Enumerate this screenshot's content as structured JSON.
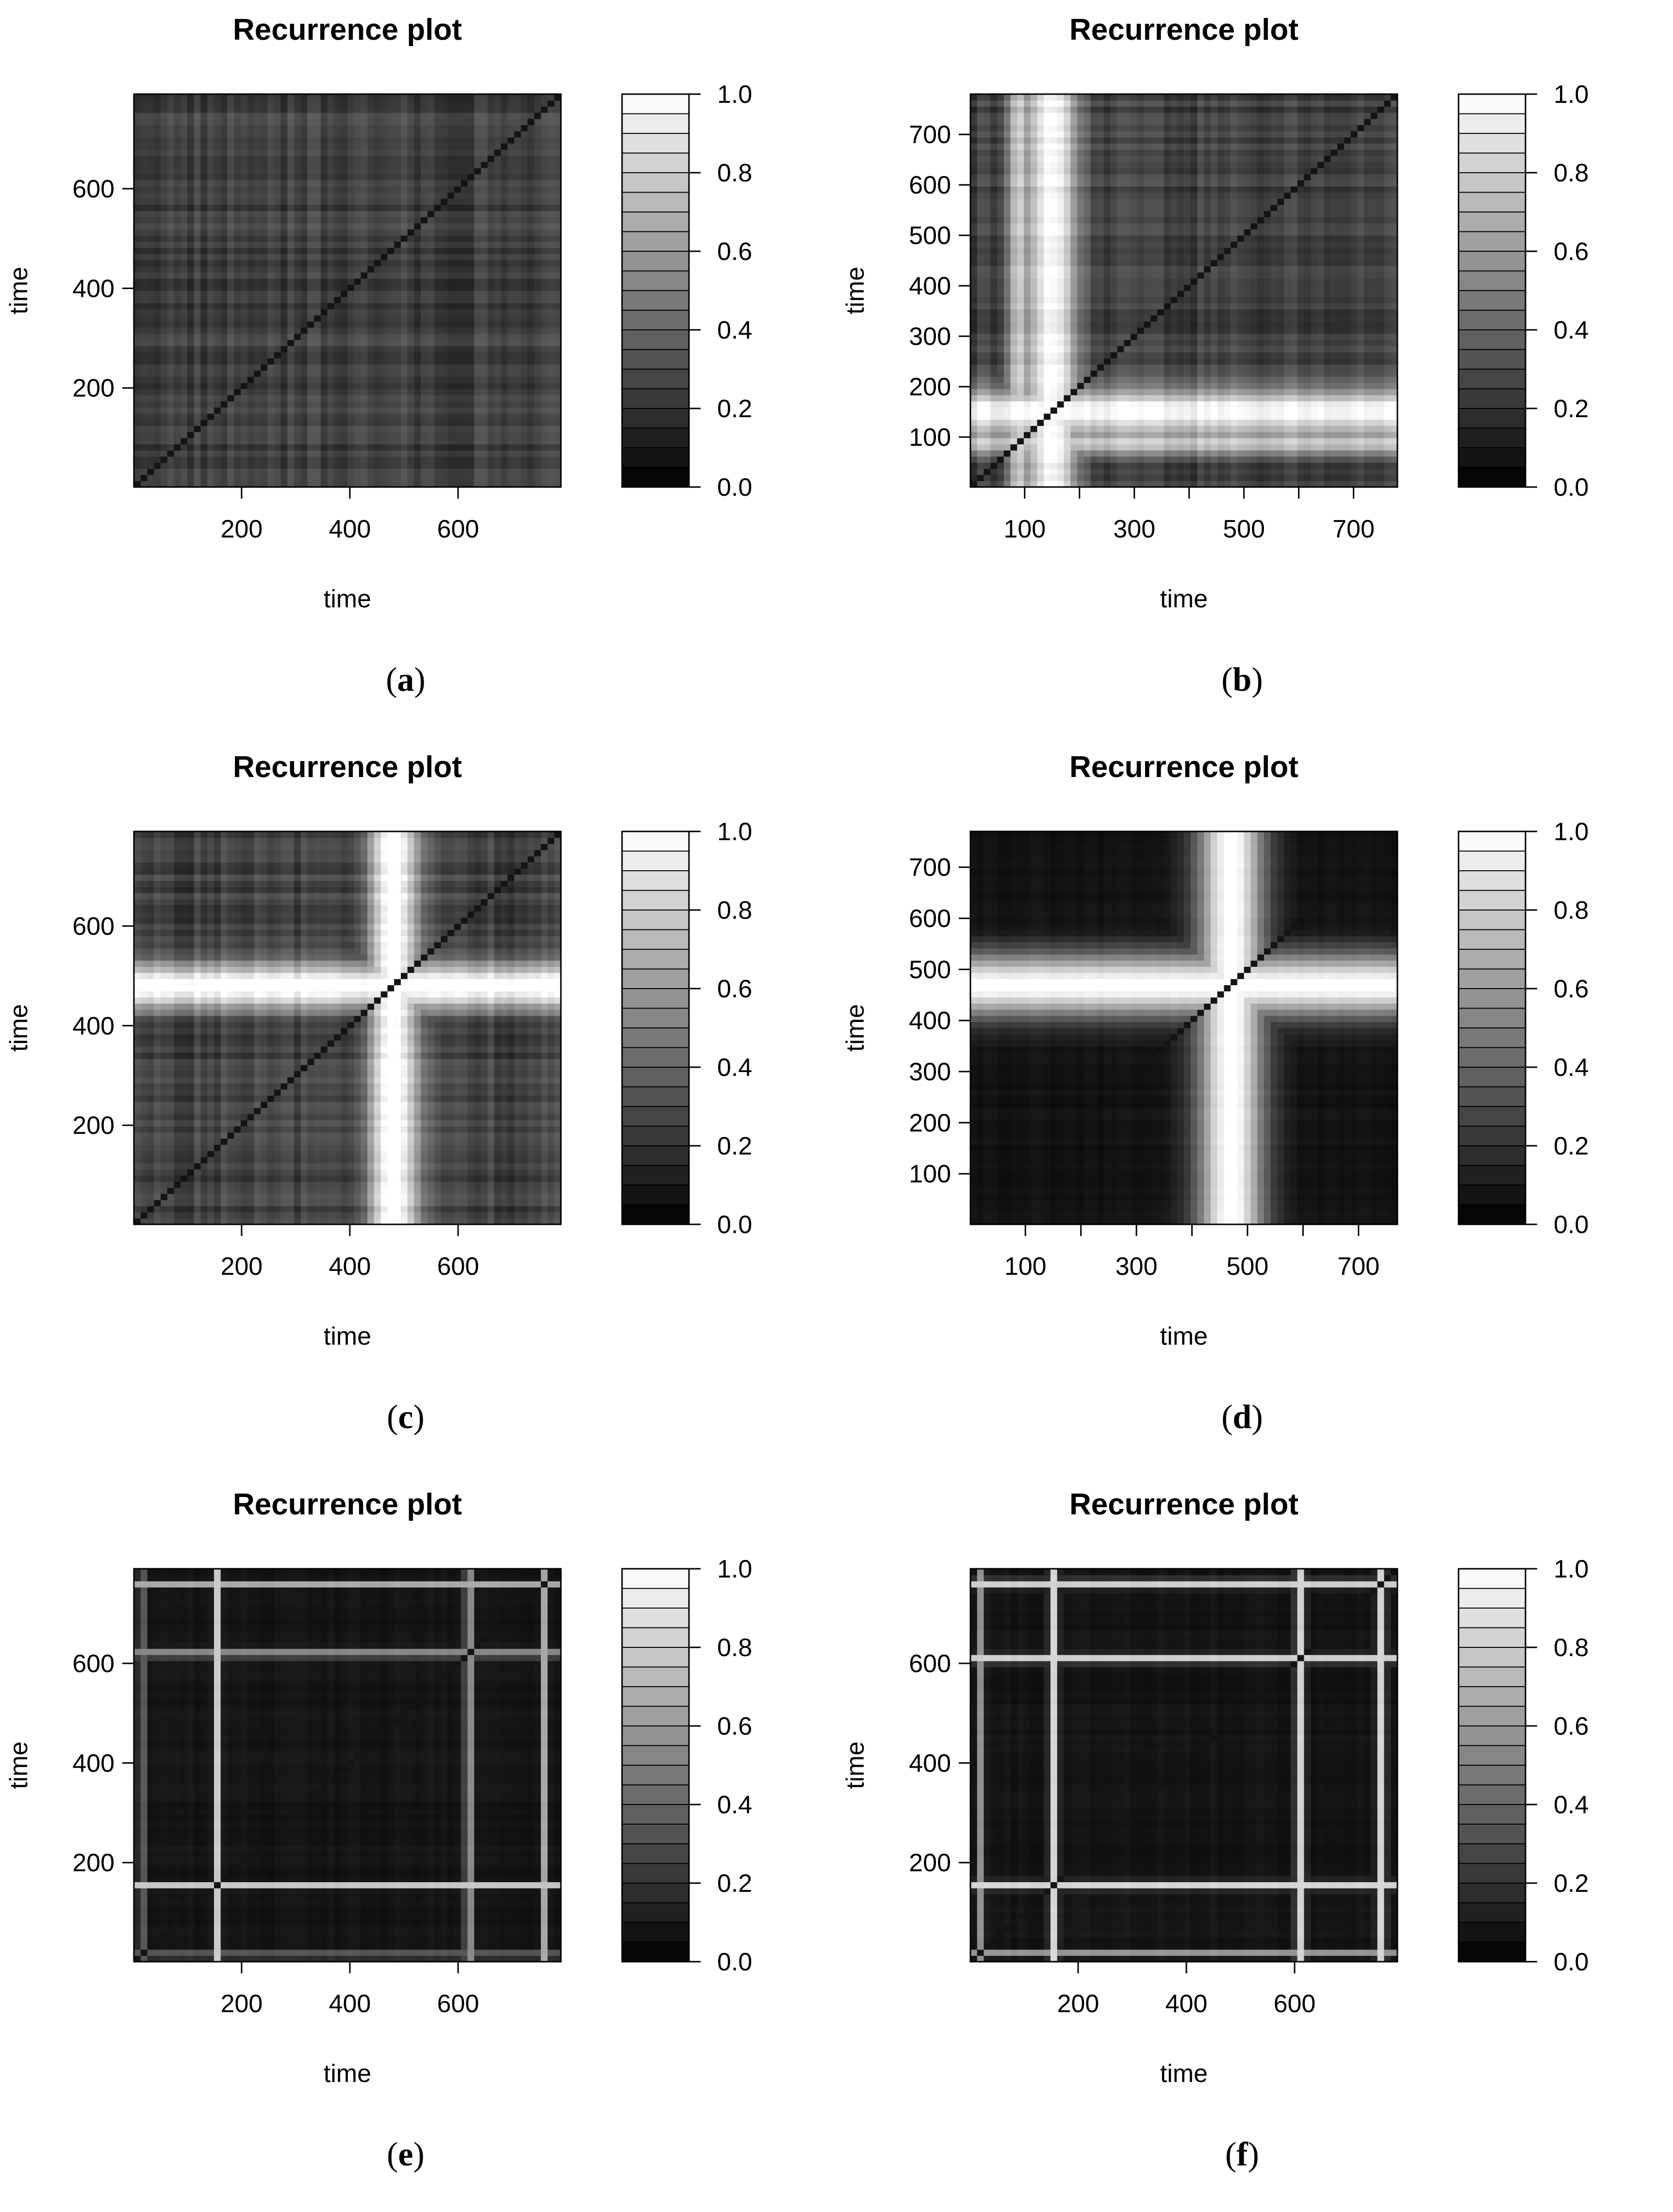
{
  "figure": {
    "panels": [
      {
        "caption_letter": "a",
        "bands": [],
        "diag": 0.0,
        "style": "noisy"
      },
      {
        "caption_letter": "b",
        "bands": [
          {
            "c": 150,
            "w": 45,
            "i": 0.75
          },
          {
            "c": 90,
            "w": 25,
            "i": 0.5
          }
        ],
        "diag": 0.0,
        "style": "textured"
      },
      {
        "caption_letter": "c",
        "bands": [
          {
            "c": 480,
            "w": 45,
            "i": 0.85
          }
        ],
        "diag": 0.0,
        "style": "noisy"
      },
      {
        "caption_letter": "d",
        "bands": [
          {
            "c": 470,
            "w": 60,
            "i": 0.95
          }
        ],
        "diag": 0.0,
        "style": "smooth"
      },
      {
        "caption_letter": "e",
        "bands": [
          {
            "c": 155,
            "w": 6,
            "i": 0.7
          },
          {
            "c": 620,
            "w": 8,
            "i": 0.55
          },
          {
            "c": 760,
            "w": 6,
            "i": 0.6
          },
          {
            "c": 15,
            "w": 6,
            "i": 0.45
          }
        ],
        "diag": 0.0,
        "style": "lines"
      },
      {
        "caption_letter": "f",
        "bands": [
          {
            "c": 155,
            "w": 8,
            "i": 0.75
          },
          {
            "c": 610,
            "w": 8,
            "i": 0.75
          },
          {
            "c": 760,
            "w": 8,
            "i": 0.75
          },
          {
            "c": 20,
            "w": 6,
            "i": 0.5
          }
        ],
        "diag": 0.0,
        "style": "lines"
      }
    ],
    "caption_parens": [
      "(",
      ")"
    ]
  },
  "chart_data": [
    {
      "type": "heatmap",
      "title": "Recurrence plot",
      "xlabel": "time",
      "ylabel": "time",
      "xlim": [
        1,
        790
      ],
      "ylim": [
        1,
        790
      ],
      "x_ticks": [
        200,
        400,
        600
      ],
      "y_ticks": [
        200,
        400,
        600
      ],
      "colorbar": {
        "range": [
          0.0,
          1.0
        ],
        "tick_labels": [
          "0.0",
          "0.2",
          "0.4",
          "0.6",
          "0.8",
          "1.0"
        ],
        "levels": 20,
        "colors": "grayscale black to white"
      }
    },
    {
      "type": "heatmap",
      "title": "Recurrence plot",
      "xlabel": "time",
      "ylabel": "time",
      "xlim": [
        1,
        780
      ],
      "ylim": [
        1,
        780
      ],
      "x_ticks": [
        100,
        200,
        300,
        400,
        500,
        600,
        700
      ],
      "x_tick_labels": [
        "100",
        "",
        "300",
        "",
        "500",
        "",
        "700"
      ],
      "y_ticks": [
        100,
        200,
        300,
        400,
        500,
        600,
        700
      ],
      "colorbar": {
        "range": [
          0.0,
          1.0
        ],
        "tick_labels": [
          "0.0",
          "0.2",
          "0.4",
          "0.6",
          "0.8",
          "1.0"
        ],
        "levels": 20,
        "colors": "grayscale black to white"
      }
    },
    {
      "type": "heatmap",
      "title": "Recurrence plot",
      "xlabel": "time",
      "ylabel": "time",
      "xlim": [
        1,
        790
      ],
      "ylim": [
        1,
        790
      ],
      "x_ticks": [
        200,
        400,
        600
      ],
      "y_ticks": [
        200,
        400,
        600
      ],
      "colorbar": {
        "range": [
          0.0,
          1.0
        ],
        "tick_labels": [
          "0.0",
          "0.2",
          "0.4",
          "0.6",
          "0.8",
          "1.0"
        ],
        "levels": 20,
        "colors": "grayscale black to white"
      }
    },
    {
      "type": "heatmap",
      "title": "Recurrence plot",
      "xlabel": "time",
      "ylabel": "time",
      "xlim": [
        1,
        770
      ],
      "ylim": [
        1,
        770
      ],
      "x_ticks": [
        100,
        200,
        300,
        400,
        500,
        600,
        700
      ],
      "x_tick_labels": [
        "100",
        "",
        "300",
        "",
        "500",
        "",
        "700"
      ],
      "y_ticks": [
        100,
        200,
        300,
        400,
        500,
        600,
        700
      ],
      "colorbar": {
        "range": [
          0.0,
          1.0
        ],
        "tick_labels": [
          "0.0",
          "0.2",
          "0.4",
          "0.6",
          "0.8",
          "1.0"
        ],
        "levels": 20,
        "colors": "grayscale black to white"
      }
    },
    {
      "type": "heatmap",
      "title": "Recurrence plot",
      "xlabel": "time",
      "ylabel": "time",
      "xlim": [
        1,
        790
      ],
      "ylim": [
        1,
        790
      ],
      "x_ticks": [
        200,
        400,
        600
      ],
      "y_ticks": [
        200,
        400,
        600
      ],
      "colorbar": {
        "range": [
          0.0,
          1.0
        ],
        "tick_labels": [
          "0.0",
          "0.2",
          "0.4",
          "0.6",
          "0.8",
          "1.0"
        ],
        "levels": 20,
        "colors": "grayscale black to white"
      }
    },
    {
      "type": "heatmap",
      "title": "Recurrence plot",
      "xlabel": "time",
      "ylabel": "time",
      "xlim": [
        1,
        790
      ],
      "ylim": [
        1,
        790
      ],
      "x_ticks": [
        200,
        400,
        600
      ],
      "y_ticks": [
        200,
        400,
        600
      ],
      "colorbar": {
        "range": [
          0.0,
          1.0
        ],
        "tick_labels": [
          "0.0",
          "0.2",
          "0.4",
          "0.6",
          "0.8",
          "1.0"
        ],
        "levels": 20,
        "colors": "grayscale black to white"
      }
    }
  ]
}
